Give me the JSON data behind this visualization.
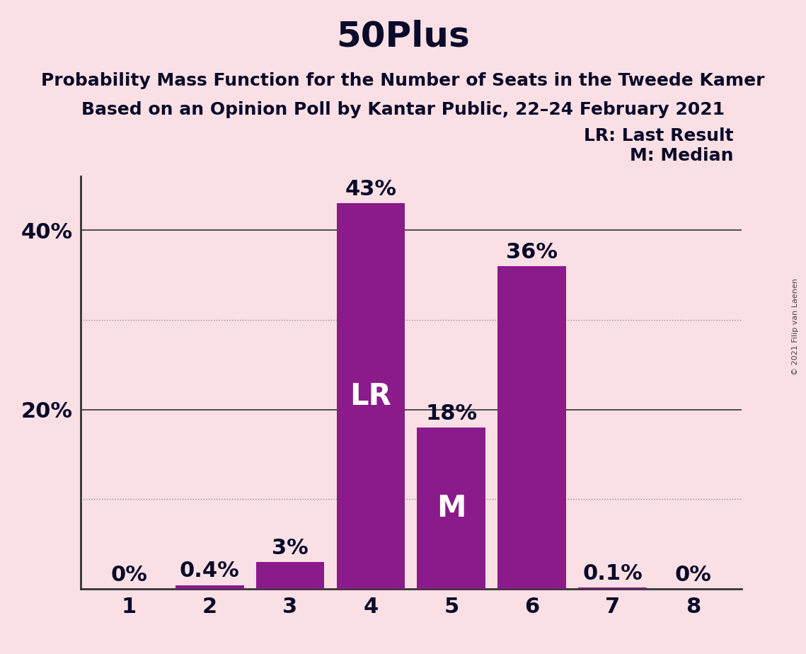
{
  "title": "50Plus",
  "subtitle1": "Probability Mass Function for the Number of Seats in the Tweede Kamer",
  "subtitle2": "Based on an Opinion Poll by Kantar Public, 22–24 February 2021",
  "copyright_text": "© 2021 Filip van Laenen",
  "categories": [
    1,
    2,
    3,
    4,
    5,
    6,
    7,
    8
  ],
  "values": [
    0.0,
    0.4,
    3.0,
    43.0,
    18.0,
    36.0,
    0.1,
    0.0
  ],
  "bar_labels": [
    "0%",
    "0.4%",
    "3%",
    "43%",
    "18%",
    "36%",
    "0.1%",
    "0%"
  ],
  "bar_color": "#8B1A8B",
  "background_color": "#FAE0E4",
  "title_fontsize": 36,
  "subtitle_fontsize": 18,
  "label_fontsize": 22,
  "axis_fontsize": 22,
  "yticks": [
    20,
    40
  ],
  "ytick_labels": [
    "20%",
    "40%"
  ],
  "dotted_lines": [
    10,
    30
  ],
  "solid_lines": [
    20,
    40
  ],
  "lr_bar_index": 3,
  "m_bar_index": 4,
  "lr_label": "LR",
  "m_label": "M",
  "legend_text1": "LR: Last Result",
  "legend_text2": "M: Median",
  "legend_fontsize": 18,
  "inside_label_fontsize": 30,
  "ylim": [
    0,
    46
  ],
  "xlim": [
    0.4,
    8.6
  ],
  "text_color": "#0a0a2a",
  "grid_color_solid": "#333333",
  "grid_color_dot": "#888888"
}
